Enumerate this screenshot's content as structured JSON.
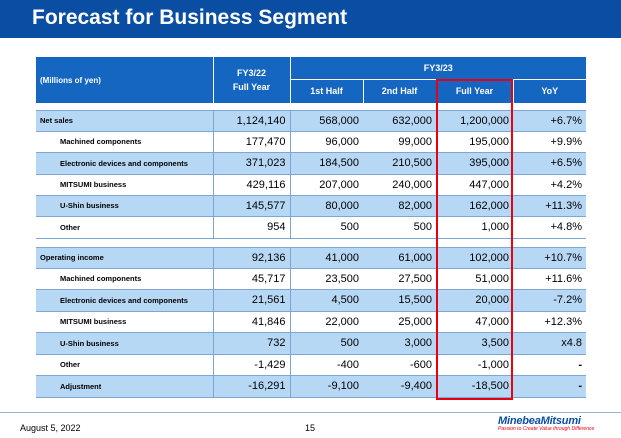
{
  "title": "Forecast for Business Segment",
  "header": {
    "units": "(Millions of yen)",
    "fy22_line1": "FY3/22",
    "fy22_line2": "Full Year",
    "fy23": "FY3/23",
    "first_half": "1st Half",
    "second_half": "2nd Half",
    "full_year": "Full Year",
    "yoy": "YoY"
  },
  "rows": [
    {
      "label": "Net sales",
      "fy22": "1,124,140",
      "h1": "568,000",
      "h2": "632,000",
      "fy": "1,200,000",
      "yoy": "+6.7%"
    },
    {
      "label": "Machined components",
      "fy22": "177,470",
      "h1": "96,000",
      "h2": "99,000",
      "fy": "195,000",
      "yoy": "+9.9%"
    },
    {
      "label": "Electronic devices and components",
      "fy22": "371,023",
      "h1": "184,500",
      "h2": "210,500",
      "fy": "395,000",
      "yoy": "+6.5%"
    },
    {
      "label": "MITSUMI business",
      "fy22": "429,116",
      "h1": "207,000",
      "h2": "240,000",
      "fy": "447,000",
      "yoy": "+4.2%"
    },
    {
      "label": "U-Shin business",
      "fy22": "145,577",
      "h1": "80,000",
      "h2": "82,000",
      "fy": "162,000",
      "yoy": "+11.3%"
    },
    {
      "label": "Other",
      "fy22": "954",
      "h1": "500",
      "h2": "500",
      "fy": "1,000",
      "yoy": "+4.8%"
    },
    {
      "label": "Operating income",
      "fy22": "92,136",
      "h1": "41,000",
      "h2": "61,000",
      "fy": "102,000",
      "yoy": "+10.7%"
    },
    {
      "label": "Machined components",
      "fy22": "45,717",
      "h1": "23,500",
      "h2": "27,500",
      "fy": "51,000",
      "yoy": "+11.6%"
    },
    {
      "label": "Electronic devices and components",
      "fy22": "21,561",
      "h1": "4,500",
      "h2": "15,500",
      "fy": "20,000",
      "yoy": "-7.2%"
    },
    {
      "label": "MITSUMI business",
      "fy22": "41,846",
      "h1": "22,000",
      "h2": "25,000",
      "fy": "47,000",
      "yoy": "+12.3%"
    },
    {
      "label": "U-Shin business",
      "fy22": "732",
      "h1": "500",
      "h2": "3,000",
      "fy": "3,500",
      "yoy": "x4.8"
    },
    {
      "label": "Other",
      "fy22": "-1,429",
      "h1": "-400",
      "h2": "-600",
      "fy": "-1,000",
      "yoy": "-"
    },
    {
      "label": "Adjustment",
      "fy22": "-16,291",
      "h1": "-9,100",
      "h2": "-9,400",
      "fy": "-18,500",
      "yoy": "-"
    }
  ],
  "footer": {
    "date": "August 5, 2022",
    "page": "15",
    "logo": "MinebeaMitsumi",
    "tagline": "Passion to Create Value through Difference"
  },
  "colors": {
    "brand_blue": "#0a4ea3",
    "header_blue": "#1466c0",
    "row_highlight": "#b7d8f5",
    "highlight_box": "#e60012"
  }
}
